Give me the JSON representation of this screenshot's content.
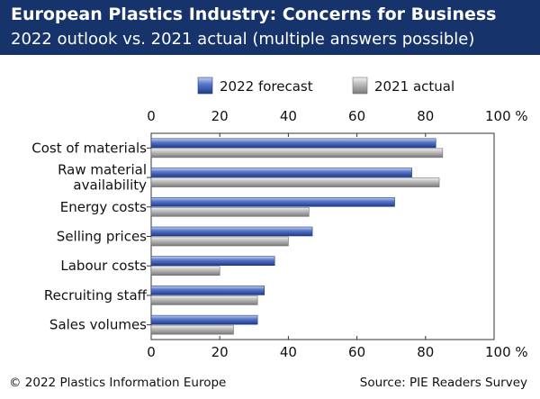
{
  "header": {
    "title": "European Plastics Industry: Concerns for Business",
    "subtitle": "2022 outlook vs. 2021 actual (multiple answers possible)"
  },
  "footer": {
    "copyright": "© 2022 Plastics Information Europe",
    "source": "Source: PIE Readers Survey"
  },
  "colors": {
    "header_bg": "#16346b",
    "forecast": "#3d5cb3",
    "actual": "#a6a6a6"
  },
  "chart_data": {
    "type": "bar",
    "orientation": "horizontal",
    "categories": [
      [
        "Cost of materials"
      ],
      [
        "Raw material",
        "availability"
      ],
      [
        "Energy costs"
      ],
      [
        "Selling prices"
      ],
      [
        "Labour costs"
      ],
      [
        "Recruiting staff"
      ],
      [
        "Sales volumes"
      ]
    ],
    "series": [
      {
        "name": "2022 forecast",
        "values": [
          83,
          76,
          71,
          47,
          36,
          33,
          31
        ]
      },
      {
        "name": "2021 actual",
        "values": [
          85,
          84,
          46,
          40,
          20,
          31,
          24
        ]
      }
    ],
    "xlim": [
      0,
      100
    ],
    "ticks": [
      "0",
      "20",
      "40",
      "60",
      "80",
      "100 %"
    ],
    "tick_values": [
      0,
      20,
      40,
      60,
      80,
      100
    ],
    "legend_position": "top",
    "grid": false
  }
}
